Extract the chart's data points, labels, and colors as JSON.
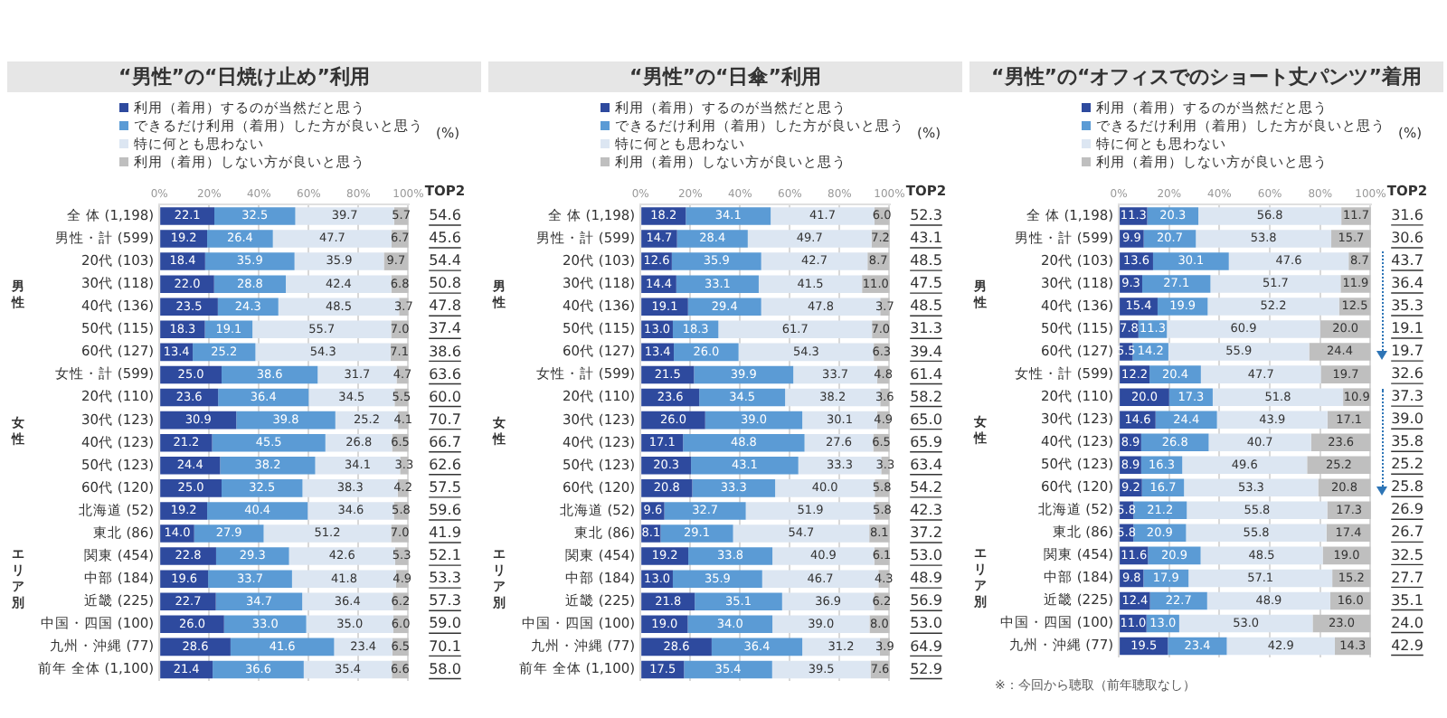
{
  "chart_data": [
    {
      "type": "bar",
      "orientation": "horizontal",
      "stacked": true,
      "title": "“男性”の“日焼け止め”利用",
      "categories": [
        "全 体 (1,198)",
        "男性・計 (599)",
        "20代 (103)",
        "30代 (118)",
        "40代 (136)",
        "50代 (115)",
        "60代 (127)",
        "女性・計 (599)",
        "20代 (110)",
        "30代 (123)",
        "40代 (123)",
        "50代 (123)",
        "60代 (120)",
        "北海道 (52)",
        "東北 (86)",
        "関東 (454)",
        "中部 (184)",
        "近畿 (225)",
        "中国・四国 (100)",
        "九州・沖縄 (77)",
        "前年 全体 (1,100)"
      ],
      "series": [
        {
          "name": "利用（着用）するのが当然だと思う",
          "color": "#2e4a9e",
          "values": [
            22.1,
            19.2,
            18.4,
            22.0,
            23.5,
            18.3,
            13.4,
            25.0,
            23.6,
            30.9,
            21.2,
            24.4,
            25.0,
            19.2,
            14.0,
            22.8,
            19.6,
            22.7,
            26.0,
            28.6,
            21.4
          ],
          "value_labels": [
            "22.1",
            "19.2",
            "18.4",
            "22.0",
            "23.5",
            "18.3",
            "13.4",
            "25.0",
            "23.6",
            "30.9",
            "21.2",
            "24.4",
            "25.0",
            "19.2",
            "14.0",
            "22.8",
            "19.6",
            "22.7",
            "26.0",
            "28.6",
            "21.4"
          ]
        },
        {
          "name": "できるだけ利用（着用）した方が良いと思う",
          "color": "#5b9bd5",
          "values": [
            32.5,
            26.4,
            35.9,
            28.8,
            24.3,
            19.1,
            25.2,
            38.6,
            36.4,
            39.8,
            45.5,
            38.2,
            32.5,
            40.4,
            27.9,
            29.3,
            33.7,
            34.7,
            33.0,
            41.6,
            36.6
          ],
          "value_labels": [
            "32.5",
            "26.4",
            "35.9",
            "28.8",
            "24.3",
            "19.1",
            "25.2",
            "38.6",
            "36.4",
            "39.8",
            "45.5",
            "38.2",
            "32.5",
            "40.4",
            "27.9",
            "29.3",
            "33.7",
            "34.7",
            "33.0",
            "41.6",
            "36.6"
          ]
        },
        {
          "name": "特に何とも思わない",
          "color": "#dce6f2",
          "values": [
            39.7,
            47.7,
            35.9,
            42.4,
            48.5,
            55.7,
            54.3,
            31.7,
            34.5,
            25.2,
            26.8,
            34.1,
            38.3,
            34.6,
            51.2,
            42.6,
            41.8,
            36.4,
            35.0,
            23.4,
            35.4
          ],
          "value_labels": [
            "39.7",
            "47.7",
            "35.9",
            "42.4",
            "48.5",
            "55.7",
            "54.3",
            "31.7",
            "34.5",
            "25.2",
            "26.8",
            "34.1",
            "38.3",
            "34.6",
            "51.2",
            "42.6",
            "41.8",
            "36.4",
            "35.0",
            "23.4",
            "35.4"
          ]
        },
        {
          "name": "利用（着用）しない方が良いと思う",
          "color": "#bfbfbf",
          "values": [
            5.7,
            6.7,
            9.7,
            6.8,
            3.7,
            7.0,
            7.1,
            4.7,
            5.5,
            4.1,
            6.5,
            3.3,
            4.2,
            5.8,
            7.0,
            5.3,
            4.9,
            6.2,
            6.0,
            6.5,
            6.6
          ],
          "value_labels": [
            "5.7",
            "6.7",
            "9.7",
            "6.8",
            "3.7",
            "7.0",
            "7.1",
            "4.7",
            "5.5",
            "4.1",
            "6.5",
            "3.3",
            "4.2",
            "5.8",
            "7.0",
            "5.3",
            "4.9",
            "6.2",
            "6.0",
            "6.5",
            "6.6"
          ]
        }
      ],
      "xlim": [
        0,
        100.2
      ],
      "xticks": [
        {
          "value": 0,
          "label": "0%"
        },
        {
          "value": 20,
          "label": "20%"
        },
        {
          "value": 40,
          "label": "40%"
        },
        {
          "value": 60,
          "label": "60%"
        },
        {
          "value": 80,
          "label": "80%"
        },
        {
          "value": 100,
          "label": "100%"
        }
      ],
      "grid": "x",
      "legend": "top",
      "annotations": [
        "(%)",
        "TOP2",
        "男性",
        "女性",
        "エリア別",
        "54.6",
        "45.6",
        "54.4",
        "50.8",
        "47.8",
        "37.4",
        "38.6",
        "63.6",
        "60.0",
        "70.7",
        "66.7",
        "62.6",
        "57.5",
        "59.6",
        "41.9",
        "52.1",
        "53.3",
        "57.3",
        "59.0",
        "70.1",
        "58.0"
      ]
    },
    {
      "type": "bar",
      "orientation": "horizontal",
      "stacked": true,
      "title": "“男性”の“日傘”利用",
      "categories": [
        "全 体 (1,198)",
        "男性・計 (599)",
        "20代 (103)",
        "30代 (118)",
        "40代 (136)",
        "50代 (115)",
        "60代 (127)",
        "女性・計 (599)",
        "20代 (110)",
        "30代 (123)",
        "40代 (123)",
        "50代 (123)",
        "60代 (120)",
        "北海道 (52)",
        "東北 (86)",
        "関東 (454)",
        "中部 (184)",
        "近畿 (225)",
        "中国・四国 (100)",
        "九州・沖縄 (77)",
        "前年 全体 (1,100)"
      ],
      "series": [
        {
          "name": "利用（着用）するのが当然だと思う",
          "color": "#2e4a9e",
          "values": [
            18.2,
            14.7,
            12.6,
            14.4,
            19.1,
            13.0,
            13.4,
            21.5,
            23.6,
            26.0,
            17.1,
            20.3,
            20.8,
            9.6,
            8.1,
            19.2,
            13.0,
            21.8,
            19.0,
            28.6,
            17.5
          ],
          "value_labels": [
            "18.2",
            "14.7",
            "12.6",
            "14.4",
            "19.1",
            "13.0",
            "13.4",
            "21.5",
            "23.6",
            "26.0",
            "17.1",
            "20.3",
            "20.8",
            "9.6",
            "8.1",
            "19.2",
            "13.0",
            "21.8",
            "19.0",
            "28.6",
            "17.5"
          ]
        },
        {
          "name": "できるだけ利用（着用）した方が良いと思う",
          "color": "#5b9bd5",
          "values": [
            34.1,
            28.4,
            35.9,
            33.1,
            29.4,
            18.3,
            26.0,
            39.9,
            34.5,
            39.0,
            48.8,
            43.1,
            33.3,
            32.7,
            29.1,
            33.8,
            35.9,
            35.1,
            34.0,
            36.4,
            35.4
          ],
          "value_labels": [
            "34.1",
            "28.4",
            "35.9",
            "33.1",
            "29.4",
            "18.3",
            "26.0",
            "39.9",
            "34.5",
            "39.0",
            "48.8",
            "43.1",
            "33.3",
            "32.7",
            "29.1",
            "33.8",
            "35.9",
            "35.1",
            "34.0",
            "36.4",
            "35.4"
          ]
        },
        {
          "name": "特に何とも思わない",
          "color": "#dce6f2",
          "values": [
            41.7,
            49.7,
            42.7,
            41.5,
            47.8,
            61.7,
            54.3,
            33.7,
            38.2,
            30.1,
            27.6,
            33.3,
            40.0,
            51.9,
            54.7,
            40.9,
            46.7,
            36.9,
            39.0,
            31.2,
            39.5
          ],
          "value_labels": [
            "41.7",
            "49.7",
            "42.7",
            "41.5",
            "47.8",
            "61.7",
            "54.3",
            "33.7",
            "38.2",
            "30.1",
            "27.6",
            "33.3",
            "40.0",
            "51.9",
            "54.7",
            "40.9",
            "46.7",
            "36.9",
            "39.0",
            "31.2",
            "39.5"
          ]
        },
        {
          "name": "利用（着用）しない方が良いと思う",
          "color": "#bfbfbf",
          "values": [
            6.0,
            7.2,
            8.7,
            11.0,
            3.7,
            7.0,
            6.3,
            4.8,
            3.6,
            4.9,
            6.5,
            3.3,
            5.8,
            5.8,
            8.1,
            6.1,
            4.3,
            6.2,
            8.0,
            3.9,
            7.6
          ],
          "value_labels": [
            "6.0",
            "7.2",
            "8.7",
            "11.0",
            "3.7",
            "7.0",
            "6.3",
            "4.8",
            "3.6",
            "4.9",
            "6.5",
            "3.3",
            "5.8",
            "5.8",
            "8.1",
            "6.1",
            "4.3",
            "6.2",
            "8.0",
            "3.9",
            "7.6"
          ]
        }
      ],
      "xlim": [
        0,
        100.2
      ],
      "xticks": [
        {
          "value": 0,
          "label": "0%"
        },
        {
          "value": 20,
          "label": "20%"
        },
        {
          "value": 40,
          "label": "40%"
        },
        {
          "value": 60,
          "label": "60%"
        },
        {
          "value": 80,
          "label": "80%"
        },
        {
          "value": 100,
          "label": "100%"
        }
      ],
      "grid": "x",
      "legend": "top",
      "annotations": [
        "(%)",
        "TOP2",
        "男性",
        "女性",
        "エリア別",
        "52.3",
        "43.1",
        "48.5",
        "47.5",
        "48.5",
        "31.3",
        "39.4",
        "61.4",
        "58.2",
        "65.0",
        "65.9",
        "63.4",
        "54.2",
        "42.3",
        "37.2",
        "53.0",
        "48.9",
        "56.9",
        "53.0",
        "64.9",
        "52.9"
      ]
    },
    {
      "type": "bar",
      "orientation": "horizontal",
      "stacked": true,
      "title": "“男性”の“オフィスでのショート丈パンツ”着用",
      "categories": [
        "全 体 (1,198)",
        "男性・計 (599)",
        "20代 (103)",
        "30代 (118)",
        "40代 (136)",
        "50代 (115)",
        "60代 (127)",
        "女性・計 (599)",
        "20代 (110)",
        "30代 (123)",
        "40代 (123)",
        "50代 (123)",
        "60代 (120)",
        "北海道 (52)",
        "東北 (86)",
        "関東 (454)",
        "中部 (184)",
        "近畿 (225)",
        "中国・四国 (100)",
        "九州・沖縄 (77)"
      ],
      "series": [
        {
          "name": "利用（着用）するのが当然だと思う",
          "color": "#2e4a9e",
          "values": [
            11.3,
            9.9,
            13.6,
            9.3,
            15.4,
            7.8,
            5.5,
            12.2,
            20.0,
            14.6,
            8.9,
            8.9,
            9.2,
            5.8,
            5.8,
            11.6,
            9.8,
            12.4,
            11.0,
            19.5
          ],
          "value_labels": [
            "11.3",
            "9.9",
            "13.6",
            "9.3",
            "15.4",
            "7.8",
            "5.5",
            "12.2",
            "20.0",
            "14.6",
            "8.9",
            "8.9",
            "9.2",
            "5.8",
            "5.8",
            "11.6",
            "9.8",
            "12.4",
            "11.0",
            "19.5"
          ]
        },
        {
          "name": "できるだけ利用（着用）した方が良いと思う",
          "color": "#5b9bd5",
          "values": [
            20.3,
            20.7,
            30.1,
            27.1,
            19.9,
            11.3,
            14.2,
            20.4,
            17.3,
            24.4,
            26.8,
            16.3,
            16.7,
            21.2,
            20.9,
            20.9,
            17.9,
            22.7,
            13.0,
            23.4
          ],
          "value_labels": [
            "20.3",
            "20.7",
            "30.1",
            "27.1",
            "19.9",
            "11.3",
            "14.2",
            "20.4",
            "17.3",
            "24.4",
            "26.8",
            "16.3",
            "16.7",
            "21.2",
            "20.9",
            "20.9",
            "17.9",
            "22.7",
            "13.0",
            "23.4"
          ]
        },
        {
          "name": "特に何とも思わない",
          "color": "#dce6f2",
          "values": [
            56.8,
            53.8,
            47.6,
            51.7,
            52.2,
            60.9,
            55.9,
            47.7,
            51.8,
            43.9,
            40.7,
            49.6,
            53.3,
            55.8,
            55.8,
            48.5,
            57.1,
            48.9,
            53.0,
            42.9
          ],
          "value_labels": [
            "56.8",
            "53.8",
            "47.6",
            "51.7",
            "52.2",
            "60.9",
            "55.9",
            "47.7",
            "51.8",
            "43.9",
            "40.7",
            "49.6",
            "53.3",
            "55.8",
            "55.8",
            "48.5",
            "57.1",
            "48.9",
            "53.0",
            "42.9"
          ]
        },
        {
          "name": "利用（着用）しない方が良いと思う",
          "color": "#bfbfbf",
          "values": [
            11.7,
            15.7,
            8.7,
            11.9,
            12.5,
            20.0,
            24.4,
            19.7,
            10.9,
            17.1,
            23.6,
            25.2,
            20.8,
            17.3,
            17.4,
            19.0,
            15.2,
            16.0,
            23.0,
            14.3
          ],
          "value_labels": [
            "11.7",
            "15.7",
            "8.7",
            "11.9",
            "12.5",
            "20.0",
            "24.4",
            "19.7",
            "10.9",
            "17.1",
            "23.6",
            "25.2",
            "20.8",
            "17.3",
            "17.4",
            "19.0",
            "15.2",
            "16.0",
            "23.0",
            "14.3"
          ]
        }
      ],
      "xlim": [
        0,
        100.2
      ],
      "xticks": [
        {
          "value": 0,
          "label": "0%"
        },
        {
          "value": 20,
          "label": "20%"
        },
        {
          "value": 40,
          "label": "40%"
        },
        {
          "value": 60,
          "label": "60%"
        },
        {
          "value": 80,
          "label": "80%"
        },
        {
          "value": 100,
          "label": "100%"
        }
      ],
      "grid": "x",
      "legend": "top",
      "annotations": [
        "(%)",
        "TOP2",
        "男性",
        "女性",
        "エリア別",
        "31.6",
        "30.6",
        "43.7",
        "36.4",
        "35.3",
        "19.1",
        "19.7",
        "32.6",
        "37.3",
        "39.0",
        "35.8",
        "25.2",
        "25.8",
        "26.9",
        "26.7",
        "32.5",
        "27.7",
        "35.1",
        "24.0",
        "42.9",
        "※：今回から聴取（前年聴取なし）"
      ]
    }
  ]
}
